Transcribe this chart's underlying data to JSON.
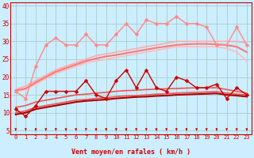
{
  "title": "",
  "xlabel": "Vent moyen/en rafales ( km/h )",
  "ylabel": "",
  "xlim": [
    -0.5,
    23.5
  ],
  "ylim": [
    4,
    41
  ],
  "yticks": [
    5,
    10,
    15,
    20,
    25,
    30,
    35,
    40
  ],
  "xticks": [
    0,
    1,
    2,
    3,
    4,
    5,
    6,
    7,
    8,
    9,
    10,
    11,
    12,
    13,
    14,
    15,
    16,
    17,
    18,
    19,
    20,
    21,
    22,
    23
  ],
  "bg_color": "#cceeff",
  "grid_color": "#aacccc",
  "series": [
    {
      "name": "rafales_jagged",
      "color": "#ff8888",
      "lw": 1.0,
      "marker": "D",
      "ms": 2.5,
      "data": [
        16,
        14,
        23,
        29,
        31,
        29,
        29,
        32,
        29,
        29,
        32,
        35,
        32,
        36,
        35,
        35,
        37,
        35,
        35,
        34,
        29,
        29,
        34,
        29
      ]
    },
    {
      "name": "rafales_upper_smooth",
      "color": "#ffaaaa",
      "lw": 1.2,
      "marker": null,
      "ms": 0,
      "data": [
        16.5,
        17.5,
        19.0,
        20.5,
        22.0,
        23.0,
        24.0,
        25.0,
        26.0,
        26.5,
        27.0,
        27.5,
        28.0,
        28.5,
        29.0,
        29.5,
        30.0,
        30.0,
        30.0,
        30.0,
        30.0,
        30.0,
        30.0,
        29.5
      ]
    },
    {
      "name": "rafales_lower_smooth",
      "color": "#ffbbbb",
      "lw": 1.2,
      "marker": null,
      "ms": 0,
      "data": [
        16.0,
        16.5,
        18.0,
        19.5,
        21.0,
        22.0,
        23.0,
        24.0,
        24.5,
        25.0,
        25.5,
        26.0,
        26.5,
        27.0,
        27.5,
        28.0,
        28.5,
        28.5,
        28.5,
        28.5,
        28.5,
        28.0,
        27.0,
        24.5
      ]
    },
    {
      "name": "vent_jagged",
      "color": "#cc0000",
      "lw": 1.0,
      "marker": "D",
      "ms": 2.5,
      "data": [
        11,
        9,
        12,
        16,
        16,
        16,
        16,
        19,
        15,
        14,
        19,
        22,
        17,
        22,
        17,
        16,
        20,
        19,
        17,
        17,
        18,
        14,
        17,
        15
      ]
    },
    {
      "name": "vent_upper_smooth",
      "color": "#ee5555",
      "lw": 1.2,
      "marker": null,
      "ms": 0,
      "data": [
        11.5,
        12.0,
        13.0,
        13.5,
        14.0,
        14.5,
        15.0,
        15.2,
        15.5,
        15.7,
        16.0,
        16.2,
        16.3,
        16.5,
        16.6,
        16.7,
        16.8,
        16.9,
        17.0,
        17.0,
        17.0,
        16.5,
        16.0,
        15.5
      ]
    },
    {
      "name": "vent_lower_smooth",
      "color": "#ee5555",
      "lw": 1.2,
      "marker": null,
      "ms": 0,
      "data": [
        10.0,
        10.5,
        11.5,
        12.0,
        12.5,
        13.0,
        13.5,
        13.7,
        14.0,
        14.2,
        14.5,
        14.7,
        14.8,
        15.0,
        15.2,
        15.3,
        15.5,
        15.6,
        15.7,
        15.8,
        15.9,
        15.5,
        15.2,
        15.0
      ]
    },
    {
      "name": "vent_mean_smooth",
      "color": "#aa0000",
      "lw": 1.5,
      "marker": null,
      "ms": 0,
      "data": [
        9.5,
        10.0,
        11.0,
        11.5,
        12.0,
        12.5,
        13.0,
        13.3,
        13.5,
        13.7,
        14.0,
        14.2,
        14.4,
        14.5,
        14.7,
        14.8,
        15.0,
        15.1,
        15.2,
        15.3,
        15.4,
        15.0,
        14.8,
        14.5
      ]
    },
    {
      "name": "rafales_mean_smooth",
      "color": "#ff7777",
      "lw": 1.5,
      "marker": null,
      "ms": 0,
      "data": [
        16.2,
        16.8,
        18.5,
        20.0,
        21.5,
        22.5,
        23.5,
        24.5,
        25.2,
        25.8,
        26.2,
        26.7,
        27.2,
        27.7,
        28.2,
        28.6,
        29.0,
        29.2,
        29.3,
        29.3,
        29.2,
        29.0,
        28.5,
        27.0
      ]
    }
  ]
}
